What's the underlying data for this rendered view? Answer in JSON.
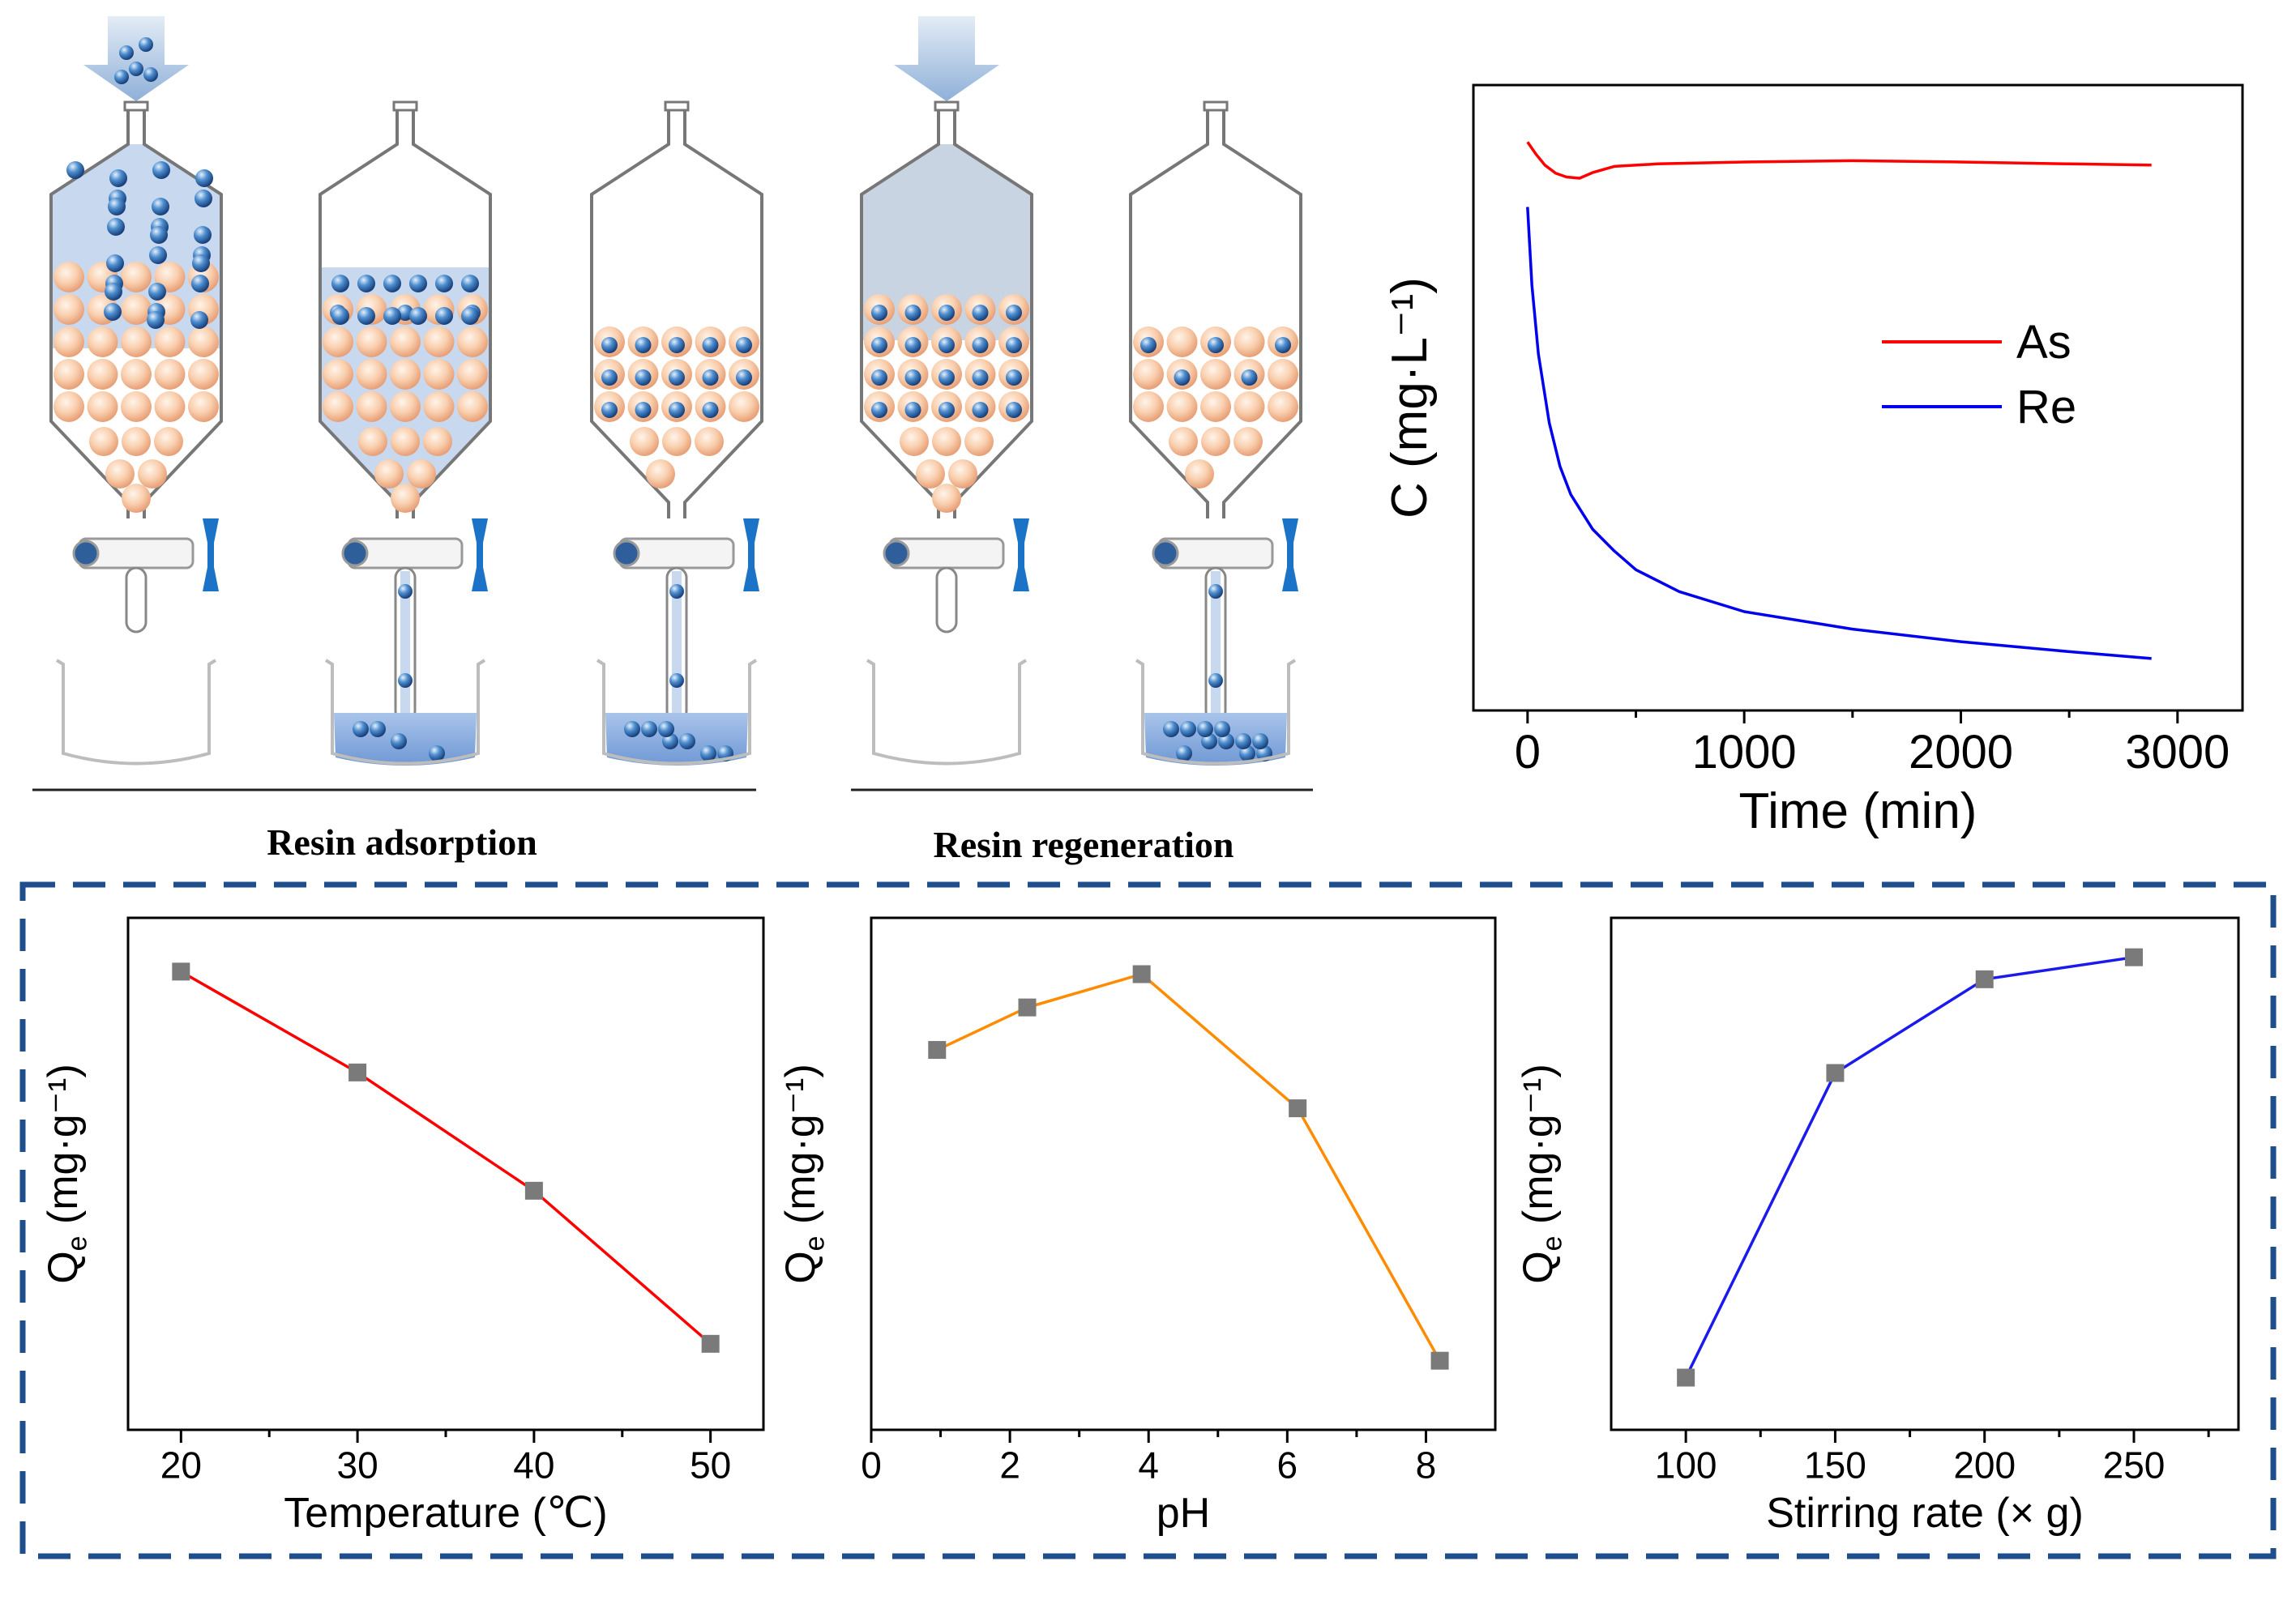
{
  "process": {
    "adsorption_label": "Resin adsorption",
    "regeneration_label": "Resin regeneration",
    "colors": {
      "resin": "#f6c7a4",
      "ion": "#2f6fb3",
      "solution": "#c8d8ee",
      "valve": "#1a73c7",
      "eluent": "#c9d4e2"
    }
  },
  "chart_data": [
    {
      "id": "kinetics",
      "type": "line",
      "xlabel": "Time (min)",
      "ylabel": "C (mg·L⁻¹)",
      "xlim": [
        -250,
        3300
      ],
      "ylim": [
        0,
        1
      ],
      "xticks": [
        0,
        1000,
        2000,
        3000
      ],
      "legend": "center-right",
      "series": [
        {
          "name": "As",
          "color": "#ff0000",
          "x": [
            0,
            40,
            80,
            130,
            180,
            240,
            300,
            400,
            600,
            1000,
            1500,
            2000,
            2500,
            2880
          ],
          "y": [
            0.909,
            0.889,
            0.872,
            0.859,
            0.853,
            0.851,
            0.86,
            0.87,
            0.874,
            0.877,
            0.879,
            0.877,
            0.874,
            0.872
          ]
        },
        {
          "name": "Re",
          "color": "#0000ee",
          "x": [
            0,
            20,
            50,
            100,
            150,
            200,
            300,
            400,
            500,
            700,
            1000,
            1500,
            2000,
            2500,
            2880
          ],
          "y": [
            0.805,
            0.68,
            0.57,
            0.46,
            0.39,
            0.345,
            0.29,
            0.255,
            0.225,
            0.19,
            0.158,
            0.13,
            0.11,
            0.094,
            0.083
          ]
        }
      ]
    },
    {
      "id": "temperature",
      "type": "line",
      "xlabel": "Temperature (℃)",
      "ylabel": "Q_e (mg·g⁻¹)",
      "xlim": [
        17,
        53
      ],
      "ylim": [
        0,
        1
      ],
      "xticks": [
        20,
        30,
        40,
        50
      ],
      "series": [
        {
          "color": "#ff0000",
          "x": [
            20,
            30,
            40,
            50
          ],
          "y": [
            0.895,
            0.698,
            0.467,
            0.168
          ]
        }
      ]
    },
    {
      "id": "ph",
      "type": "line",
      "xlabel": "pH",
      "ylabel": "Q_e (mg·g⁻¹)",
      "xlim": [
        0,
        9
      ],
      "ylim": [
        0,
        1
      ],
      "xticks": [
        0,
        2,
        4,
        6,
        8
      ],
      "series": [
        {
          "color": "#ff8c00",
          "x": [
            0.95,
            2.25,
            3.9,
            6.15,
            8.2
          ],
          "y": [
            0.742,
            0.825,
            0.89,
            0.628,
            0.135
          ]
        }
      ]
    },
    {
      "id": "stirring",
      "type": "line",
      "xlabel": "Stirring rate (× g)",
      "ylabel": "Q_e (mg·g⁻¹)",
      "xlim": [
        75,
        285
      ],
      "ylim": [
        0,
        1
      ],
      "xticks": [
        100,
        150,
        200,
        250
      ],
      "series": [
        {
          "color": "#1a1aee",
          "x": [
            100,
            150,
            200,
            250
          ],
          "y": [
            0.102,
            0.697,
            0.88,
            0.923
          ]
        }
      ]
    }
  ]
}
